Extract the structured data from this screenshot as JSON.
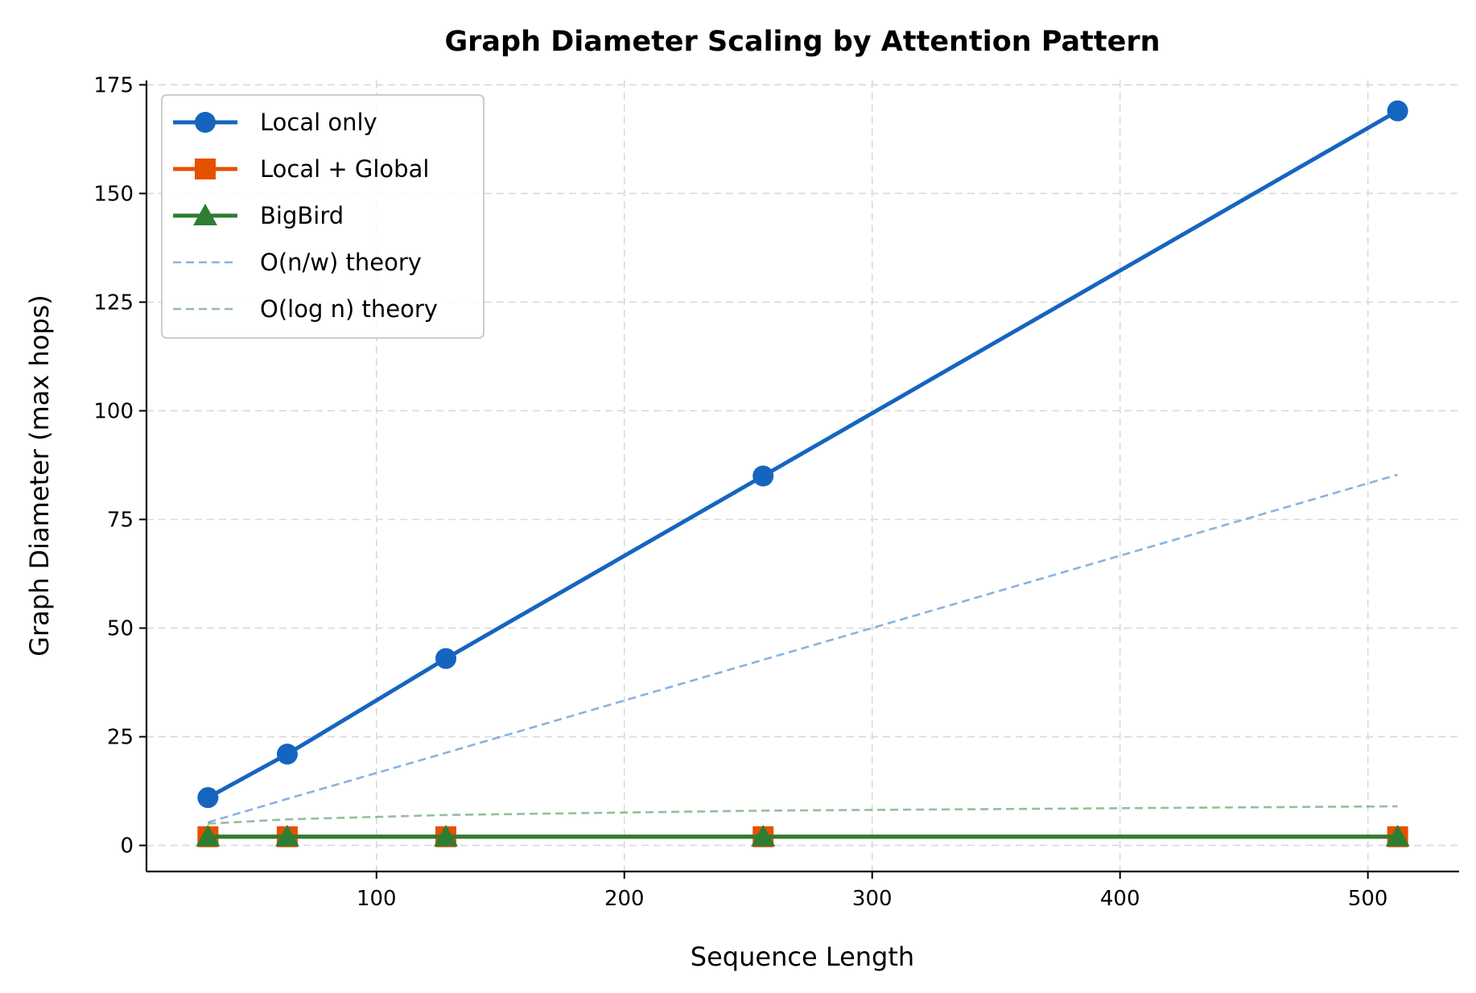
{
  "chart_data": {
    "type": "line",
    "title": "Graph Diameter Scaling by Attention Pattern",
    "xlabel": "Sequence Length",
    "ylabel": "Graph Diameter (max hops)",
    "xlim": [
      7.2,
      536.8
    ],
    "ylim": [
      -6,
      176
    ],
    "xticks": [
      100,
      200,
      300,
      400,
      500
    ],
    "yticks": [
      0,
      25,
      50,
      75,
      100,
      125,
      150,
      175
    ],
    "grid": true,
    "legend_position": "upper-left",
    "series": [
      {
        "name": "Local only",
        "x": [
          32,
          64,
          128,
          256,
          512
        ],
        "y": [
          11,
          21,
          43,
          85,
          169
        ],
        "color": "#1565c0",
        "marker": "circle",
        "line": "solid"
      },
      {
        "name": "Local + Global",
        "x": [
          32,
          64,
          128,
          256,
          512
        ],
        "y": [
          2,
          2,
          2,
          2,
          2
        ],
        "color": "#e65100",
        "marker": "square",
        "line": "solid"
      },
      {
        "name": "BigBird",
        "x": [
          32,
          64,
          128,
          256,
          512
        ],
        "y": [
          2,
          2,
          2,
          2,
          2
        ],
        "color": "#2e7d32",
        "marker": "triangle",
        "line": "solid"
      },
      {
        "name": "O(n/w) theory",
        "x": [
          32,
          64,
          128,
          256,
          512
        ],
        "y": [
          5.3,
          10.7,
          21.3,
          42.7,
          85.3
        ],
        "color": "#1565c0",
        "marker": "none",
        "line": "dashed",
        "opacity": 0.5
      },
      {
        "name": "O(log n) theory",
        "x": [
          32,
          64,
          128,
          256,
          512
        ],
        "y": [
          5,
          6,
          7,
          8,
          9
        ],
        "color": "#2e7d32",
        "marker": "none",
        "line": "dashed",
        "opacity": 0.5
      }
    ]
  }
}
